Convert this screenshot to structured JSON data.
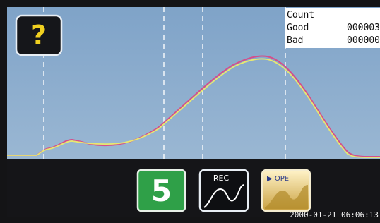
{
  "help_button": {
    "label": "?"
  },
  "counter": {
    "title": "Count",
    "rows": [
      {
        "label": "Good",
        "value": "000003"
      },
      {
        "label": "Bad",
        "value": "000000"
      }
    ]
  },
  "buttons": [
    {
      "label": "5"
    },
    {
      "label": "REC"
    },
    {
      "label": "▶ OPE"
    }
  ],
  "timestamp": "2000-01-21 06:06:13"
}
